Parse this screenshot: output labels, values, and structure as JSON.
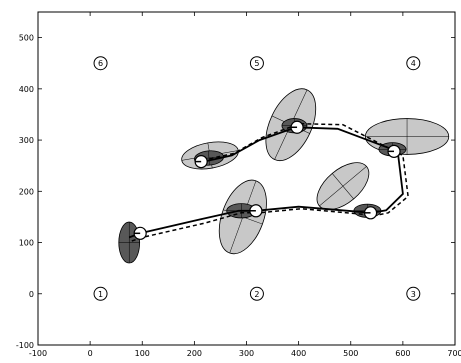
{
  "chart_data": {
    "type": "scatter",
    "title": "",
    "xlabel": "",
    "ylabel": "",
    "xlim": [
      -100,
      700
    ],
    "ylim": [
      -100,
      550
    ],
    "xticks": [
      -100,
      0,
      100,
      200,
      300,
      400,
      500,
      600,
      700
    ],
    "yticks": [
      -100,
      0,
      100,
      200,
      300,
      400,
      500
    ],
    "grid": false,
    "landmarks": [
      {
        "label": "1",
        "x": 20,
        "y": 0
      },
      {
        "label": "2",
        "x": 320,
        "y": 0
      },
      {
        "label": "3",
        "x": 620,
        "y": 0
      },
      {
        "label": "4",
        "x": 620,
        "y": 450
      },
      {
        "label": "5",
        "x": 320,
        "y": 450
      },
      {
        "label": "6",
        "x": 20,
        "y": 450
      }
    ],
    "series": [
      {
        "style": "solid",
        "color": "#000000",
        "x": [
          75,
          96,
          210,
          285,
          318,
          400,
          540,
          568,
          600,
          590,
          475,
          395,
          325,
          272,
          218
        ],
        "y": [
          110,
          118,
          145,
          162,
          162,
          170,
          158,
          163,
          195,
          278,
          322,
          325,
          300,
          270,
          258
        ]
      },
      {
        "style": "dashed",
        "color": "#000000",
        "x": [
          80,
          100,
          220,
          290,
          325,
          405,
          548,
          572,
          610,
          600,
          485,
          402,
          330,
          276,
          222
        ],
        "y": [
          103,
          110,
          138,
          158,
          158,
          166,
          153,
          158,
          190,
          270,
          330,
          332,
          305,
          274,
          262
        ]
      }
    ],
    "ellipses": [
      {
        "cx": 75,
        "cy": 100,
        "rx": 20,
        "ry": 40,
        "angle": 0,
        "fill": "#585858"
      },
      {
        "cx": 230,
        "cy": 270,
        "rx": 55,
        "ry": 25,
        "angle": -10,
        "fill": "#c8c8c8"
      },
      {
        "cx": 228,
        "cy": 265,
        "rx": 28,
        "ry": 14,
        "angle": -5,
        "fill": "#585858"
      },
      {
        "cx": 293,
        "cy": 150,
        "rx": 40,
        "ry": 75,
        "angle": 20,
        "fill": "#c8c8c8"
      },
      {
        "cx": 290,
        "cy": 162,
        "rx": 28,
        "ry": 14,
        "angle": 0,
        "fill": "#585858"
      },
      {
        "cx": 385,
        "cy": 330,
        "rx": 40,
        "ry": 75,
        "angle": 25,
        "fill": "#c8c8c8"
      },
      {
        "cx": 392,
        "cy": 328,
        "rx": 24,
        "ry": 14,
        "angle": 0,
        "fill": "#585858"
      },
      {
        "cx": 485,
        "cy": 210,
        "rx": 32,
        "ry": 60,
        "angle": 50,
        "fill": "#c8c8c8"
      },
      {
        "cx": 532,
        "cy": 162,
        "rx": 26,
        "ry": 13,
        "angle": 0,
        "fill": "#585858"
      },
      {
        "cx": 608,
        "cy": 307,
        "rx": 80,
        "ry": 35,
        "angle": 0,
        "fill": "#c8c8c8"
      },
      {
        "cx": 580,
        "cy": 282,
        "rx": 26,
        "ry": 13,
        "angle": 0,
        "fill": "#585858"
      }
    ],
    "poses": [
      {
        "x": 96,
        "y": 118,
        "heading": 180
      },
      {
        "x": 213,
        "y": 258,
        "heading": 180
      },
      {
        "x": 318,
        "y": 162,
        "heading": 180
      },
      {
        "x": 397,
        "y": 325,
        "heading": 180
      },
      {
        "x": 538,
        "y": 158,
        "heading": 180
      },
      {
        "x": 583,
        "y": 278,
        "heading": 180
      }
    ]
  }
}
